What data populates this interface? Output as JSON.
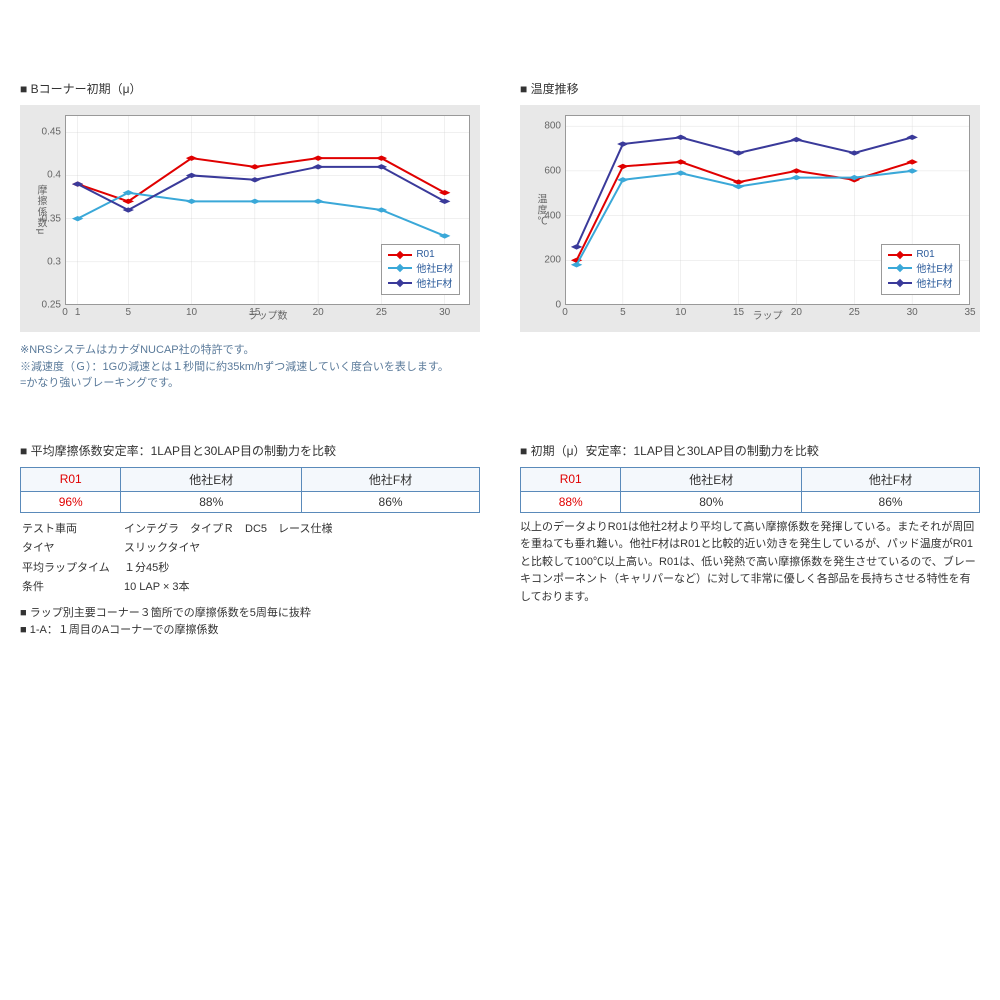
{
  "colors": {
    "r01": "#e00000",
    "e": "#3aa8d8",
    "f": "#3a3a9a",
    "grid": "#cccccc",
    "chart_bg": "#e8e8e8",
    "table_border": "#5a8aba",
    "link_text": "#5a7a9a"
  },
  "chart1": {
    "title": "Bコーナー初期（μ）",
    "y_label": "摩擦係数μ",
    "x_label": "ラップ数",
    "xlim": [
      0,
      32
    ],
    "ylim": [
      0.25,
      0.47
    ],
    "x_ticks": [
      0,
      1,
      5,
      10,
      15,
      20,
      25,
      30
    ],
    "y_ticks": [
      0.25,
      0.3,
      0.35,
      0.4,
      0.45
    ],
    "series": [
      {
        "name": "R01",
        "label": "R01",
        "color": "#e00000",
        "points": [
          [
            1,
            0.39
          ],
          [
            5,
            0.37
          ],
          [
            10,
            0.42
          ],
          [
            15,
            0.41
          ],
          [
            20,
            0.42
          ],
          [
            25,
            0.42
          ],
          [
            30,
            0.38
          ]
        ]
      },
      {
        "name": "E",
        "label": "他社E材",
        "color": "#3aa8d8",
        "points": [
          [
            1,
            0.35
          ],
          [
            5,
            0.38
          ],
          [
            10,
            0.37
          ],
          [
            15,
            0.37
          ],
          [
            20,
            0.37
          ],
          [
            25,
            0.36
          ],
          [
            30,
            0.33
          ]
        ]
      },
      {
        "name": "F",
        "label": "他社F材",
        "color": "#3a3a9a",
        "points": [
          [
            1,
            0.39
          ],
          [
            5,
            0.36
          ],
          [
            10,
            0.4
          ],
          [
            15,
            0.395
          ],
          [
            20,
            0.41
          ],
          [
            25,
            0.41
          ],
          [
            30,
            0.37
          ]
        ]
      }
    ]
  },
  "chart2": {
    "title": "温度推移",
    "y_label": "温度℃",
    "x_label": "ラップ",
    "xlim": [
      0,
      35
    ],
    "ylim": [
      0,
      850
    ],
    "x_ticks": [
      0,
      5,
      10,
      15,
      20,
      25,
      30,
      35
    ],
    "y_ticks": [
      0,
      200,
      400,
      600,
      800
    ],
    "series": [
      {
        "name": "R01",
        "label": "R01",
        "color": "#e00000",
        "points": [
          [
            1,
            200
          ],
          [
            5,
            620
          ],
          [
            10,
            640
          ],
          [
            15,
            550
          ],
          [
            20,
            600
          ],
          [
            25,
            560
          ],
          [
            30,
            640
          ]
        ]
      },
      {
        "name": "E",
        "label": "他社E材",
        "color": "#3aa8d8",
        "points": [
          [
            1,
            180
          ],
          [
            5,
            560
          ],
          [
            10,
            590
          ],
          [
            15,
            530
          ],
          [
            20,
            570
          ],
          [
            25,
            570
          ],
          [
            30,
            600
          ]
        ]
      },
      {
        "name": "F",
        "label": "他社F材",
        "color": "#3a3a9a",
        "points": [
          [
            1,
            260
          ],
          [
            5,
            720
          ],
          [
            10,
            750
          ],
          [
            15,
            680
          ],
          [
            20,
            740
          ],
          [
            25,
            680
          ],
          [
            30,
            750
          ]
        ]
      }
    ]
  },
  "legend": [
    "R01",
    "他社E材",
    "他社F材"
  ],
  "notes": [
    "※NRSシステムはカナダNUCAP社の特許です。",
    "※減速度（Ｇ）：1Gの減速とは１秒間に約35km/hずつ減速していく度合いを表します。",
    "=かなり強いブレーキングです。"
  ],
  "table1": {
    "title": "平均摩擦係数安定率：1LAP目と30LAP目の制動力を比較",
    "headers": [
      "R01",
      "他社E材",
      "他社F材"
    ],
    "values": [
      "96%",
      "88%",
      "86%"
    ]
  },
  "table2": {
    "title": "初期（μ）安定率：1LAP目と30LAP目の制動力を比較",
    "headers": [
      "R01",
      "他社E材",
      "他社F材"
    ],
    "values": [
      "88%",
      "80%",
      "86%"
    ]
  },
  "test_info": [
    [
      "テスト車両",
      "インテグラ　タイプＲ　DC5　レース仕様"
    ],
    [
      "タイヤ",
      "スリックタイヤ"
    ],
    [
      "平均ラップタイム",
      "１分45秒"
    ],
    [
      "条件",
      "10 LAP × 3本"
    ]
  ],
  "bullets": [
    "ラップ別主要コーナー３箇所での摩擦係数を5周毎に抜粋",
    "1-A：１周目のAコーナーでの摩擦係数"
  ],
  "conclusion": "以上のデータよりR01は他社2材より平均して高い摩擦係数を発揮している。またそれが周回を重ねても垂れ難い。他社F材はR01と比較的近い効きを発生しているが、パッド温度がR01と比較して100℃以上高い。R01は、低い発熱で高い摩擦係数を発生させているので、ブレーキコンポーネント（キャリパーなど）に対して非常に優しく各部品を長持ちさせる特性を有しております。"
}
